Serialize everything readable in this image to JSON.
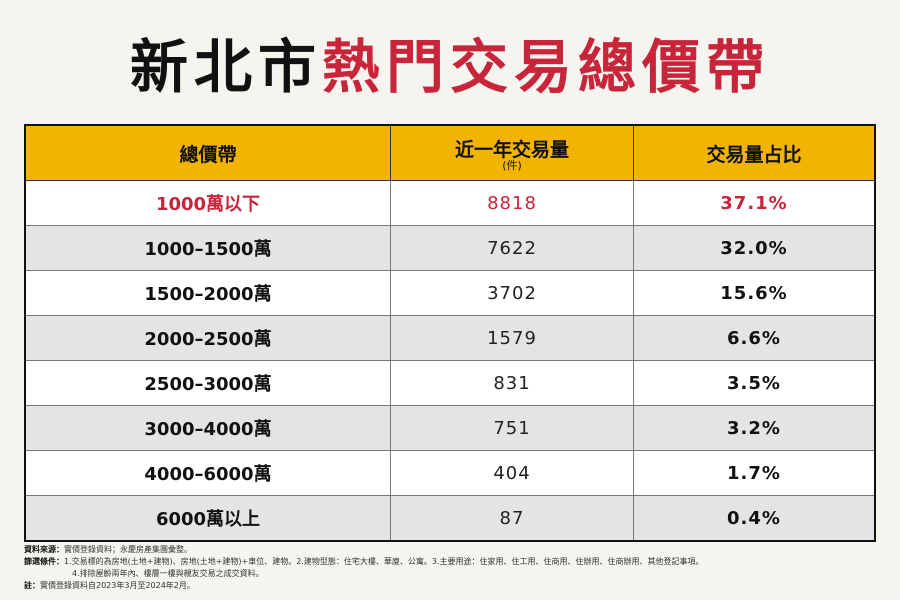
{
  "title": {
    "part1": "新北市",
    "part2": "熱門交易總價帶"
  },
  "table": {
    "headers": [
      "總價帶",
      "近一年交易量",
      "交易量占比"
    ],
    "header_sub": "(件)",
    "rows": [
      {
        "band": "1000萬以下",
        "count": "8818",
        "share": "37.1%"
      },
      {
        "band": "1000–1500萬",
        "count": "7622",
        "share": "32.0%"
      },
      {
        "band": "1500–2000萬",
        "count": "3702",
        "share": "15.6%"
      },
      {
        "band": "2000–2500萬",
        "count": "1579",
        "share": "6.6%"
      },
      {
        "band": "2500–3000萬",
        "count": "831",
        "share": "3.5%"
      },
      {
        "band": "3000–4000萬",
        "count": "751",
        "share": "3.2%"
      },
      {
        "band": "4000–6000萬",
        "count": "404",
        "share": "1.7%"
      },
      {
        "band": "6000萬以上",
        "count": "87",
        "share": "0.4%"
      }
    ]
  },
  "notes": {
    "source_label": "資料來源：",
    "source_text": "實價登錄資料；永慶房產集團彙整。",
    "filter_label": "篩選條件：",
    "filter_text_1": "1.交易標的為房地(土地+建物)、房地(土地+建物)+車位、建物。2.建物型態：住宅大樓、華廈、公寓。3.主要用途：住家用、住工用、住商用、住辦用、住商辦用、其他登記事項。",
    "filter_text_2": "4.排除屋齡兩年內、樓層一樓與親友交易之成交資料。",
    "note_label": "註：",
    "note_text": "實價登錄資料自2023年3月至2024年2月。"
  },
  "colors": {
    "accent_red": "#c8243a",
    "header_yellow": "#f2b400"
  }
}
